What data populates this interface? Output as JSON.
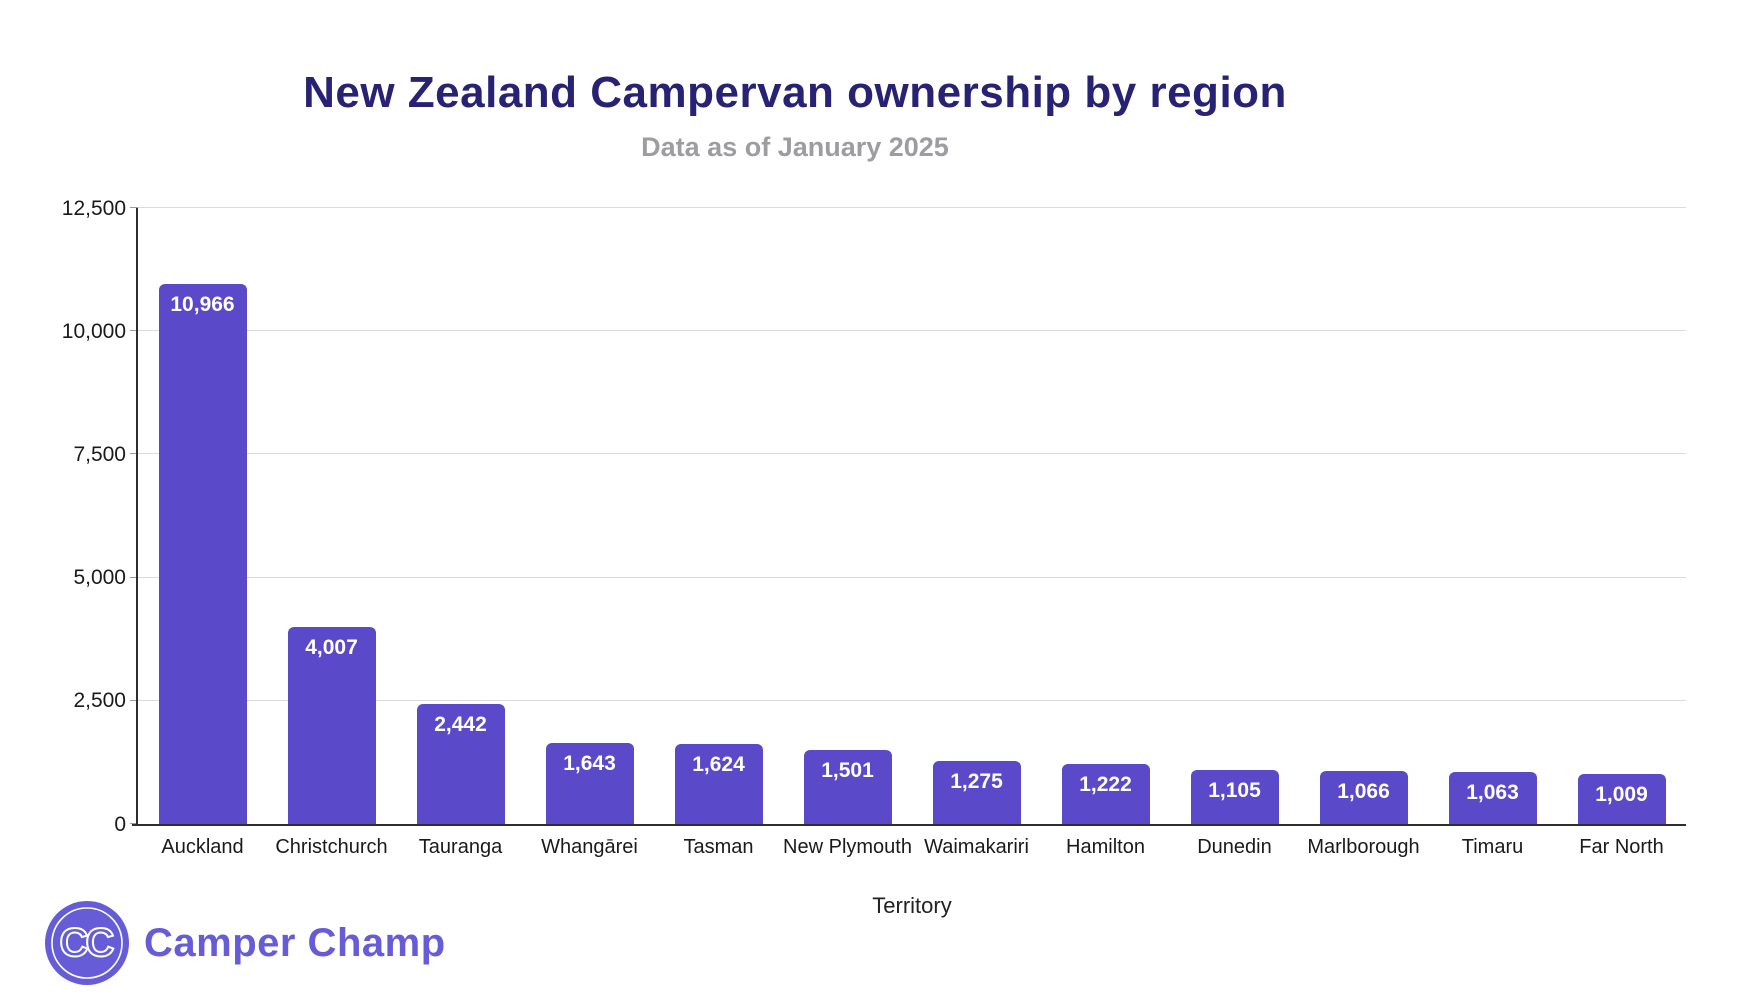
{
  "chart_data": {
    "type": "bar",
    "title": "New Zealand Campervan ownership by region",
    "subtitle": "Data as of January 2025",
    "xlabel": "Territory",
    "ylabel": "",
    "categories": [
      "Auckland",
      "Christchurch",
      "Tauranga",
      "Whangārei",
      "Tasman",
      "New Plymouth",
      "Waimakariri",
      "Hamilton",
      "Dunedin",
      "Marlborough",
      "Timaru",
      "Far North"
    ],
    "values": [
      10966,
      4007,
      2442,
      1643,
      1624,
      1501,
      1275,
      1222,
      1105,
      1066,
      1063,
      1009
    ],
    "value_labels": [
      "10,966",
      "4,007",
      "2,442",
      "1,643",
      "1,624",
      "1,501",
      "1,275",
      "1,222",
      "1,105",
      "1,066",
      "1,063",
      "1,009"
    ],
    "ylim": [
      0,
      12500
    ],
    "ytick_interval": 2500,
    "yticks": [
      {
        "value": 12500,
        "label": "12,500"
      },
      {
        "value": 10000,
        "label": "10,000"
      },
      {
        "value": 7500,
        "label": "7,500"
      },
      {
        "value": 5000,
        "label": "5,000"
      },
      {
        "value": 2500,
        "label": "2,500"
      },
      {
        "value": 0,
        "label": "0"
      }
    ],
    "grid": true,
    "legend": false,
    "bar_color": "#5A49C9",
    "value_label_position": "inside-top"
  },
  "branding": {
    "logo_monogram": "CC",
    "logo_text": "Camper Champ",
    "logo_color": "#665CD8"
  },
  "colors": {
    "bar": "#5A49C9",
    "title": "#282275",
    "subtitle": "#9C9CA1",
    "axis": "#2E2E2E",
    "gridline": "#DBDBDB",
    "tick_text": "#1A1A1A",
    "bar_value_text": "#FFFFFF",
    "background": "#FFFFFF"
  }
}
